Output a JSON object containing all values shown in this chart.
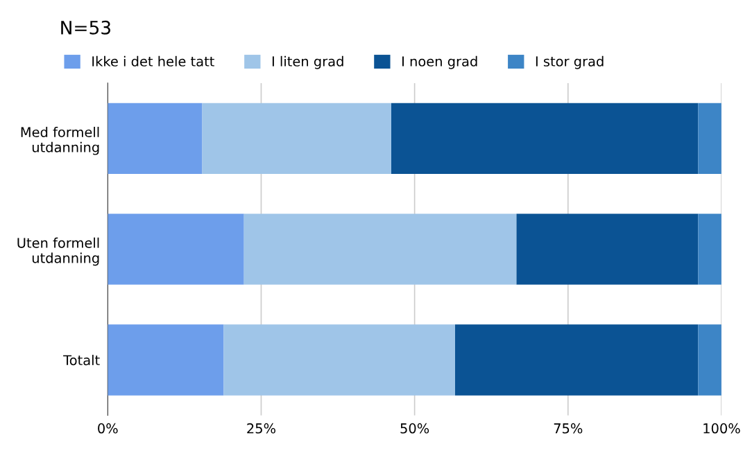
{
  "chart_data": {
    "type": "bar",
    "orientation": "horizontal",
    "stacked": true,
    "title": "N=53",
    "categories": [
      "Med formell\nutdanning",
      "Uten formell\nutdanning",
      "Totalt"
    ],
    "series": [
      {
        "name": "Ikke i det hele tatt",
        "color": "#6d9eeb",
        "values": [
          15.4,
          22.2,
          18.9
        ]
      },
      {
        "name": "I liten grad",
        "color": "#9fc5e8",
        "values": [
          30.8,
          44.4,
          37.7
        ]
      },
      {
        "name": "I noen grad",
        "color": "#0b5394",
        "values": [
          50.0,
          29.6,
          39.6
        ]
      },
      {
        "name": "I stor grad",
        "color": "#3d85c6",
        "values": [
          3.8,
          3.8,
          3.8
        ]
      }
    ],
    "xlim": [
      0,
      100
    ],
    "xticks": [
      {
        "value": 0,
        "label": "0%"
      },
      {
        "value": 25,
        "label": "25%"
      },
      {
        "value": 50,
        "label": "50%"
      },
      {
        "value": 75,
        "label": "75%"
      },
      {
        "value": 100,
        "label": "100%"
      }
    ],
    "grid": "x",
    "legend": "top left"
  }
}
